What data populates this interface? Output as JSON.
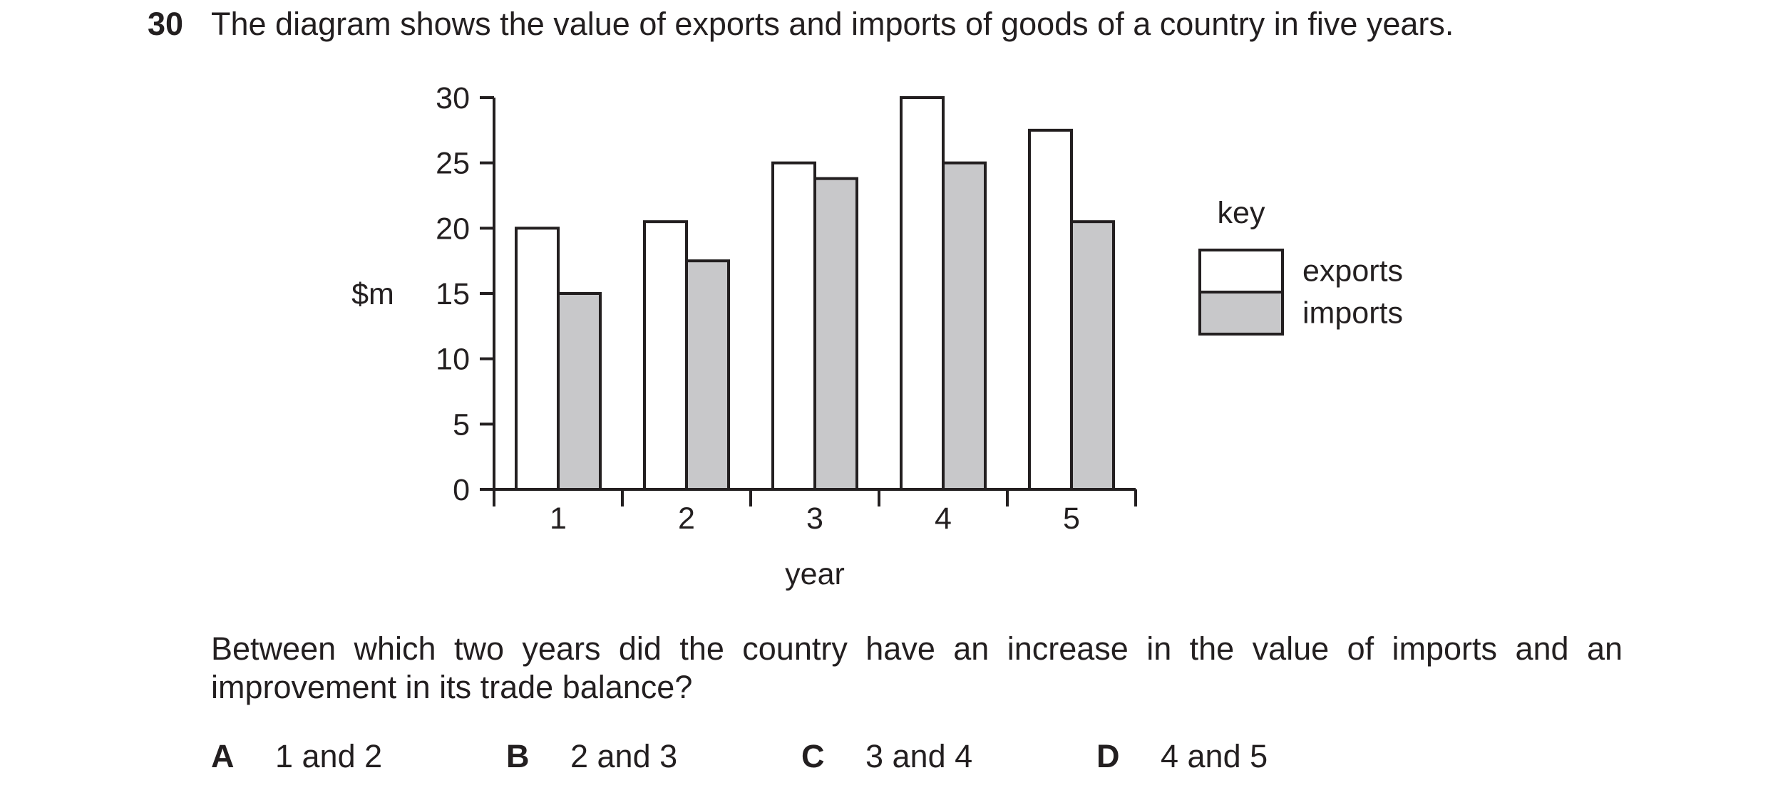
{
  "question": {
    "number": "30",
    "stem": "The diagram shows the value of exports and imports of goods of a country in five years.",
    "prompt": "Between which two years did the country have an increase in the value of imports and an improvement in its trade balance?",
    "options": [
      {
        "letter": "A",
        "text": "1 and 2"
      },
      {
        "letter": "B",
        "text": "2 and 3"
      },
      {
        "letter": "C",
        "text": "3 and 4"
      },
      {
        "letter": "D",
        "text": "4 and 5"
      }
    ]
  },
  "chart_data": {
    "type": "bar",
    "categories": [
      "1",
      "2",
      "3",
      "4",
      "5"
    ],
    "series": [
      {
        "name": "exports",
        "values": [
          20,
          20.5,
          25,
          30,
          27.5
        ],
        "color": "#ffffff"
      },
      {
        "name": "imports",
        "values": [
          15,
          17.5,
          23.8,
          25,
          20.5
        ],
        "color": "#c8c8ca"
      }
    ],
    "xlabel": "year",
    "ylabel": "$m",
    "ylim": [
      0,
      30
    ],
    "yticks": [
      "0",
      "5",
      "10",
      "15",
      "20",
      "25",
      "30"
    ],
    "grid": false,
    "legend": {
      "title": "key",
      "placement": "right"
    }
  }
}
